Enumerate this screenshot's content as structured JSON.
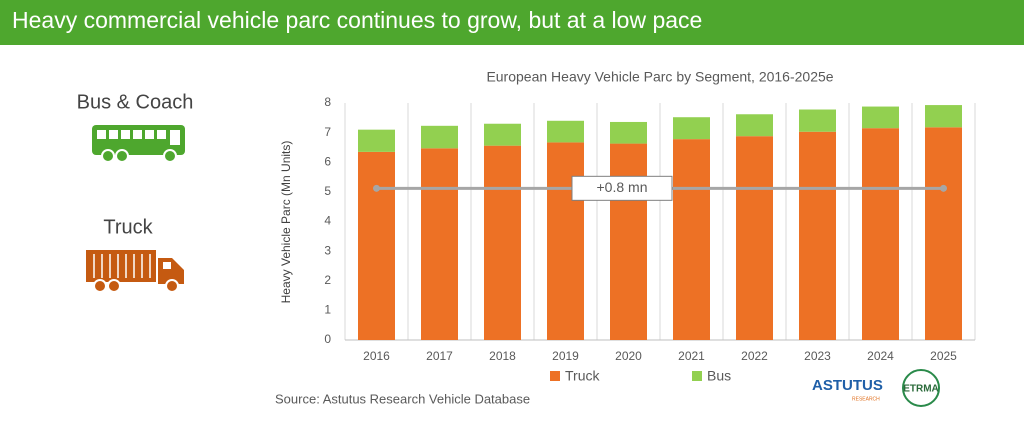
{
  "header": {
    "title": "Heavy commercial vehicle parc continues to grow, but at a low pace"
  },
  "icons": {
    "bus_label": "Bus & Coach",
    "truck_label": "Truck"
  },
  "chart_data": {
    "type": "stacked_bar",
    "title": "European Heavy Vehicle Parc by Segment, 2016-2025e",
    "y_label": "Heavy Vehicle Parc (Mn Units)",
    "categories": [
      "2016",
      "2017",
      "2018",
      "2019",
      "2020",
      "2021",
      "2022",
      "2023",
      "2024",
      "2025"
    ],
    "series": [
      {
        "name": "Truck",
        "color": "#ed7125",
        "values": [
          6.35,
          6.47,
          6.56,
          6.67,
          6.63,
          6.78,
          6.88,
          7.03,
          7.15,
          7.18
        ]
      },
      {
        "name": "Bus",
        "color": "#92d050",
        "values": [
          0.75,
          0.76,
          0.74,
          0.73,
          0.73,
          0.74,
          0.74,
          0.75,
          0.73,
          0.75
        ]
      }
    ],
    "ylim": [
      0,
      8
    ],
    "yticks": [
      0,
      1,
      2,
      3,
      4,
      5,
      6,
      7,
      8
    ],
    "category_separators": true,
    "legend": "bottom",
    "annotation": "+0.8 mn"
  },
  "source": "Source: Astutus Research Vehicle Database",
  "logos": {
    "astutus": "ASTUTUS",
    "astutus_sub": "RESEARCH",
    "etrma": "ETRMA"
  }
}
